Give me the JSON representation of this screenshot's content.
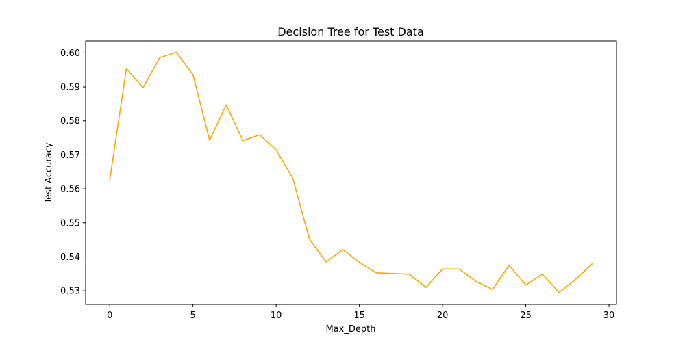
{
  "chart_data": {
    "type": "line",
    "title": "Decision Tree for Test Data",
    "xlabel": "Max_Depth",
    "ylabel": "Test Accuracy",
    "xlim": [
      -1.45,
      30.45
    ],
    "ylim": [
      0.526,
      0.6035
    ],
    "xticks": [
      0,
      5,
      10,
      15,
      20,
      25,
      30
    ],
    "yticks": [
      0.53,
      0.54,
      0.55,
      0.56,
      0.57,
      0.58,
      0.59,
      0.6
    ],
    "ytick_labels": [
      "0.53",
      "0.54",
      "0.55",
      "0.56",
      "0.57",
      "0.58",
      "0.59",
      "0.60"
    ],
    "grid": false,
    "series": [
      {
        "color": "#ffa500",
        "x": [
          0,
          1,
          2,
          3,
          4,
          5,
          6,
          7,
          8,
          9,
          10,
          11,
          12,
          13,
          14,
          15,
          16,
          17,
          18,
          19,
          20,
          21,
          22,
          23,
          24,
          25,
          26,
          27,
          28,
          29
        ],
        "values": [
          0.5627,
          0.5954,
          0.5898,
          0.5986,
          0.6002,
          0.5936,
          0.5743,
          0.5847,
          0.5742,
          0.5759,
          0.5715,
          0.5631,
          0.5452,
          0.5385,
          0.5421,
          0.5384,
          0.5353,
          0.5351,
          0.5349,
          0.531,
          0.5364,
          0.5364,
          0.5328,
          0.5304,
          0.5375,
          0.5317,
          0.5349,
          0.5295,
          0.5334,
          0.538
        ]
      }
    ]
  }
}
